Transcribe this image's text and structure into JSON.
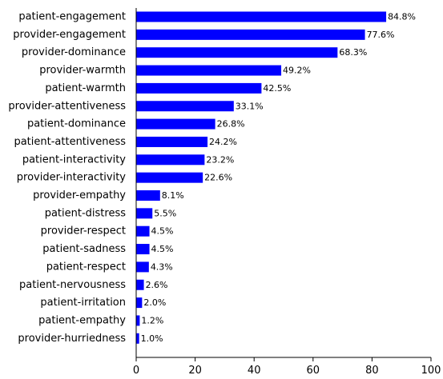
{
  "chart_data": {
    "type": "bar",
    "orientation": "horizontal",
    "categories": [
      "patient-engagement",
      "provider-engagement",
      "provider-dominance",
      "provider-warmth",
      "patient-warmth",
      "provider-attentiveness",
      "patient-dominance",
      "patient-attentiveness",
      "patient-interactivity",
      "provider-interactivity",
      "provider-empathy",
      "patient-distress",
      "provider-respect",
      "patient-sadness",
      "patient-respect",
      "patient-nervousness",
      "patient-irritation",
      "patient-empathy",
      "provider-hurriedness"
    ],
    "values": [
      84.8,
      77.6,
      68.3,
      49.2,
      42.5,
      33.1,
      26.8,
      24.2,
      23.2,
      22.6,
      8.1,
      5.5,
      4.5,
      4.5,
      4.3,
      2.6,
      2.0,
      1.2,
      1.0
    ],
    "value_labels": [
      "84.8%",
      "77.6%",
      "68.3%",
      "49.2%",
      "42.5%",
      "33.1%",
      "26.8%",
      "24.2%",
      "23.2%",
      "22.6%",
      "8.1%",
      "5.5%",
      "4.5%",
      "4.5%",
      "4.3%",
      "2.6%",
      "2.0%",
      "1.2%",
      "1.0%"
    ],
    "xlim": [
      0,
      100
    ],
    "xticks": [
      "0",
      "20",
      "40",
      "60",
      "80",
      "100"
    ],
    "xticks_values": [
      0,
      20,
      40,
      60,
      80,
      100
    ],
    "title": "",
    "xlabel": "",
    "ylabel": "",
    "grid": false,
    "bar_color": "#0000ff"
  }
}
